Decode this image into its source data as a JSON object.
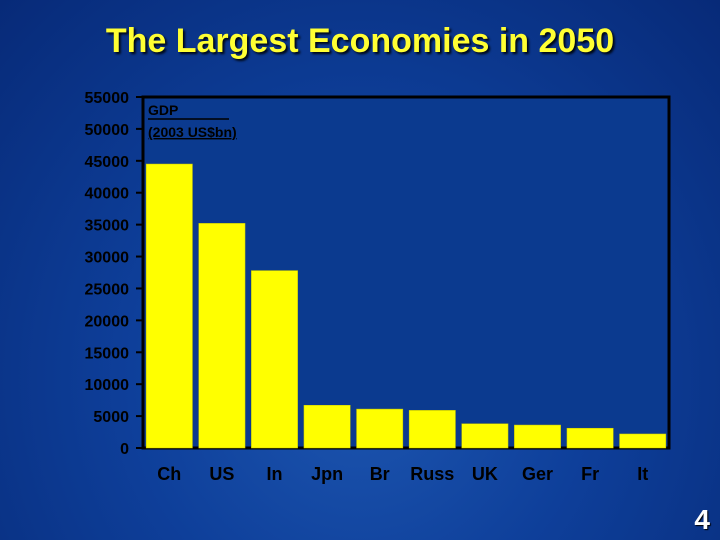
{
  "page": {
    "title": "The Largest Economies in 2050",
    "page_number": "4"
  },
  "colors": {
    "bar": "#ffff00",
    "plot_background": "#0b3a8f",
    "axis": "#000000",
    "title": "#ffff33"
  },
  "chart_data": {
    "type": "bar",
    "title": "The Largest Economies in 2050",
    "ylabel_lines": [
      "GDP",
      "(2003 US$bn)"
    ],
    "categories": [
      "Ch",
      "US",
      "In",
      "Jpn",
      "Br",
      "Russ",
      "UK",
      "Ger",
      "Fr",
      "It"
    ],
    "values": [
      44500,
      35200,
      27800,
      6700,
      6100,
      5900,
      3800,
      3600,
      3100,
      2200
    ],
    "ylim": [
      0,
      55000
    ],
    "yticks": [
      0,
      5000,
      10000,
      15000,
      20000,
      25000,
      30000,
      35000,
      40000,
      45000,
      50000,
      55000
    ],
    "grid": false,
    "legend": "none"
  }
}
